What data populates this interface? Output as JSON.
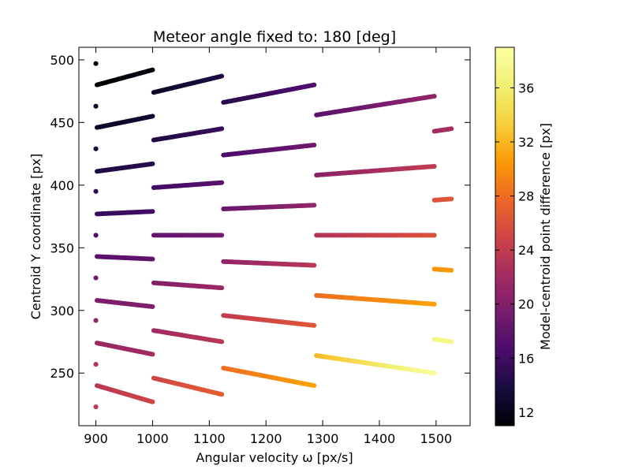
{
  "chart_data": {
    "type": "scatter",
    "title": "Meteor angle fixed to: 180 [deg]",
    "xlabel": "Angular velocity ω [px/s]",
    "ylabel": "Centroid Y coordinate [px]",
    "colorbar_label": "Model-centroid  point difference [px]",
    "xlim": [
      870,
      1560
    ],
    "ylim": [
      208,
      510
    ],
    "xticks": [
      900,
      1000,
      1100,
      1200,
      1300,
      1400,
      1500
    ],
    "yticks": [
      250,
      300,
      350,
      400,
      450,
      500
    ],
    "colorbar_range": [
      11,
      39
    ],
    "colorbar_ticks": [
      12,
      16,
      20,
      24,
      28,
      32,
      36
    ],
    "colormap": "inferno",
    "grid": false,
    "segments": [
      {
        "x": [
          900,
          900
        ],
        "y": [
          497,
          497
        ],
        "c": [
          11.5,
          11.5
        ]
      },
      {
        "x": [
          900,
          900
        ],
        "y": [
          463,
          463
        ],
        "c": [
          12.5,
          12.5
        ]
      },
      {
        "x": [
          900,
          900
        ],
        "y": [
          429,
          429
        ],
        "c": [
          13.5,
          13.5
        ]
      },
      {
        "x": [
          900,
          900
        ],
        "y": [
          395,
          395
        ],
        "c": [
          15,
          15
        ]
      },
      {
        "x": [
          900,
          900
        ],
        "y": [
          360,
          360
        ],
        "c": [
          17,
          17
        ]
      },
      {
        "x": [
          900,
          900
        ],
        "y": [
          326,
          326
        ],
        "c": [
          19,
          19
        ]
      },
      {
        "x": [
          900,
          900
        ],
        "y": [
          292,
          292
        ],
        "c": [
          21,
          21
        ]
      },
      {
        "x": [
          900,
          900
        ],
        "y": [
          257,
          257
        ],
        "c": [
          23,
          23
        ]
      },
      {
        "x": [
          900,
          900
        ],
        "y": [
          223,
          223
        ],
        "c": [
          24,
          24
        ]
      },
      {
        "x": [
          902,
          1000
        ],
        "y": [
          480,
          492
        ],
        "c": [
          11,
          11.5
        ]
      },
      {
        "x": [
          902,
          1000
        ],
        "y": [
          446,
          455
        ],
        "c": [
          12.5,
          13
        ]
      },
      {
        "x": [
          902,
          1000
        ],
        "y": [
          411,
          417
        ],
        "c": [
          14,
          14.5
        ]
      },
      {
        "x": [
          902,
          1000
        ],
        "y": [
          377,
          379
        ],
        "c": [
          15.5,
          16
        ]
      },
      {
        "x": [
          902,
          1000
        ],
        "y": [
          343,
          341
        ],
        "c": [
          17.5,
          18
        ]
      },
      {
        "x": [
          902,
          1000
        ],
        "y": [
          308,
          303
        ],
        "c": [
          19.5,
          20
        ]
      },
      {
        "x": [
          902,
          1000
        ],
        "y": [
          274,
          265
        ],
        "c": [
          21.5,
          22
        ]
      },
      {
        "x": [
          902,
          1000
        ],
        "y": [
          240,
          227
        ],
        "c": [
          23.5,
          25
        ]
      },
      {
        "x": [
          1002,
          1122
        ],
        "y": [
          474,
          487
        ],
        "c": [
          12.5,
          14
        ]
      },
      {
        "x": [
          1002,
          1122
        ],
        "y": [
          436,
          445
        ],
        "c": [
          14,
          15.5
        ]
      },
      {
        "x": [
          1002,
          1122
        ],
        "y": [
          398,
          402
        ],
        "c": [
          16,
          17.5
        ]
      },
      {
        "x": [
          1002,
          1122
        ],
        "y": [
          360,
          360
        ],
        "c": [
          18,
          19
        ]
      },
      {
        "x": [
          1002,
          1122
        ],
        "y": [
          322,
          318
        ],
        "c": [
          20,
          21.5
        ]
      },
      {
        "x": [
          1002,
          1122
        ],
        "y": [
          284,
          275
        ],
        "c": [
          22,
          23.5
        ]
      },
      {
        "x": [
          1002,
          1122
        ],
        "y": [
          246,
          233
        ],
        "c": [
          25,
          27
        ]
      },
      {
        "x": [
          1125,
          1285
        ],
        "y": [
          466,
          480
        ],
        "c": [
          14.5,
          17
        ]
      },
      {
        "x": [
          1125,
          1285
        ],
        "y": [
          424,
          432
        ],
        "c": [
          16.5,
          19
        ]
      },
      {
        "x": [
          1125,
          1285
        ],
        "y": [
          381,
          384
        ],
        "c": [
          18.5,
          21
        ]
      },
      {
        "x": [
          1125,
          1285
        ],
        "y": [
          339,
          336
        ],
        "c": [
          21,
          23.5
        ]
      },
      {
        "x": [
          1125,
          1285
        ],
        "y": [
          296,
          288
        ],
        "c": [
          24,
          26.5
        ]
      },
      {
        "x": [
          1125,
          1285
        ],
        "y": [
          254,
          240
        ],
        "c": [
          28,
          31
        ]
      },
      {
        "x": [
          1289,
          1497
        ],
        "y": [
          456,
          471
        ],
        "c": [
          17.5,
          21
        ]
      },
      {
        "x": [
          1289,
          1497
        ],
        "y": [
          408,
          415
        ],
        "c": [
          20.5,
          24
        ]
      },
      {
        "x": [
          1289,
          1497
        ],
        "y": [
          360,
          360
        ],
        "c": [
          23,
          26
        ]
      },
      {
        "x": [
          1289,
          1497
        ],
        "y": [
          312,
          305
        ],
        "c": [
          28,
          31
        ]
      },
      {
        "x": [
          1289,
          1497
        ],
        "y": [
          264,
          250
        ],
        "c": [
          32,
          38.5
        ]
      },
      {
        "x": [
          1497,
          1527
        ],
        "y": [
          443,
          445
        ],
        "c": [
          22,
          22.5
        ]
      },
      {
        "x": [
          1497,
          1527
        ],
        "y": [
          388,
          389
        ],
        "c": [
          26,
          26.5
        ]
      },
      {
        "x": [
          1497,
          1527
        ],
        "y": [
          333,
          332
        ],
        "c": [
          30,
          30.5
        ]
      },
      {
        "x": [
          1497,
          1527
        ],
        "y": [
          277,
          275
        ],
        "c": [
          37,
          37.5
        ]
      }
    ]
  }
}
